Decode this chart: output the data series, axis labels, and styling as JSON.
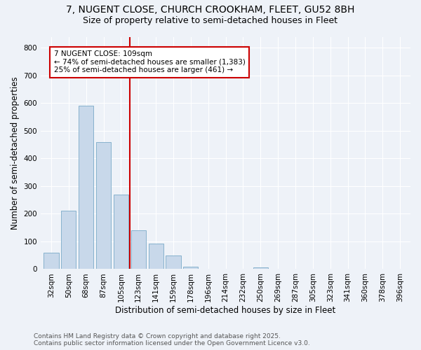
{
  "title_line1": "7, NUGENT CLOSE, CHURCH CROOKHAM, FLEET, GU52 8BH",
  "title_line2": "Size of property relative to semi-detached houses in Fleet",
  "xlabel": "Distribution of semi-detached houses by size in Fleet",
  "ylabel": "Number of semi-detached properties",
  "categories": [
    "32sqm",
    "50sqm",
    "68sqm",
    "87sqm",
    "105sqm",
    "123sqm",
    "141sqm",
    "159sqm",
    "178sqm",
    "196sqm",
    "214sqm",
    "232sqm",
    "250sqm",
    "269sqm",
    "287sqm",
    "305sqm",
    "323sqm",
    "341sqm",
    "360sqm",
    "378sqm",
    "396sqm"
  ],
  "values": [
    60,
    210,
    590,
    460,
    270,
    140,
    93,
    48,
    8,
    0,
    0,
    0,
    7,
    0,
    0,
    0,
    0,
    0,
    0,
    0,
    0
  ],
  "bar_color": "#c8d8ea",
  "bar_edge_color": "#7aaac8",
  "vline_x": 4.5,
  "vline_color": "#cc0000",
  "annotation_title": "7 NUGENT CLOSE: 109sqm",
  "annotation_line2": "← 74% of semi-detached houses are smaller (1,383)",
  "annotation_line3": "25% of semi-detached houses are larger (461) →",
  "annotation_box_color": "#cc0000",
  "ylim": [
    0,
    840
  ],
  "yticks": [
    0,
    100,
    200,
    300,
    400,
    500,
    600,
    700,
    800
  ],
  "footnote1": "Contains HM Land Registry data © Crown copyright and database right 2025.",
  "footnote2": "Contains public sector information licensed under the Open Government Licence v3.0.",
  "background_color": "#eef2f8",
  "grid_color": "#ffffff",
  "title_fontsize": 10,
  "subtitle_fontsize": 9,
  "axis_label_fontsize": 8.5,
  "tick_fontsize": 7.5,
  "annotation_fontsize": 7.5,
  "footnote_fontsize": 6.5
}
